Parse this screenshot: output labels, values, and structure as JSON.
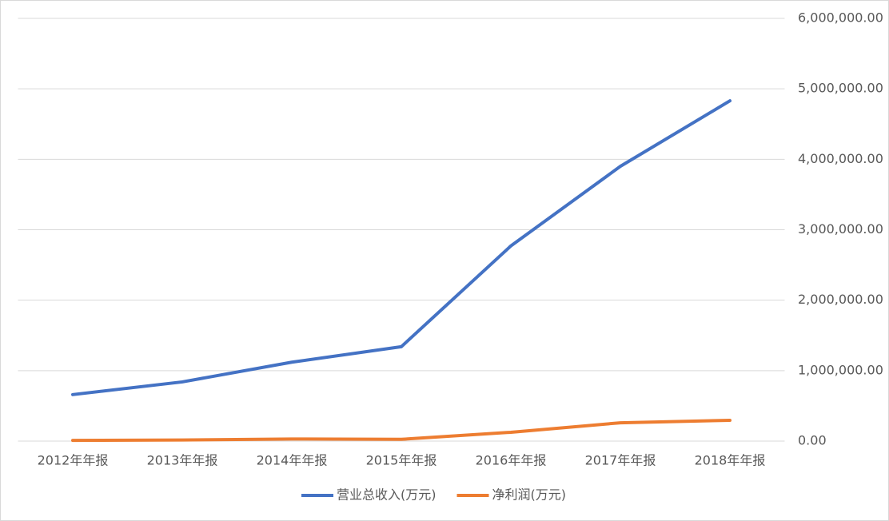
{
  "chart_data": {
    "type": "line",
    "categories": [
      "2012年年报",
      "2013年年报",
      "2014年年报",
      "2015年年报",
      "2016年年报",
      "2017年年报",
      "2018年年报"
    ],
    "series": [
      {
        "name": "营业总收入(万元)",
        "color": "#4472c4",
        "values": [
          660000,
          840000,
          1120000,
          1340000,
          2770000,
          3900000,
          4830000
        ]
      },
      {
        "name": "净利润(万元)",
        "color": "#ed7d31",
        "values": [
          10000,
          15000,
          30000,
          25000,
          125000,
          260000,
          295000
        ]
      }
    ],
    "ylim": [
      0,
      6000000
    ],
    "yticks": [
      {
        "value": 0,
        "label": "0.00"
      },
      {
        "value": 1000000,
        "label": "1,000,000.00"
      },
      {
        "value": 2000000,
        "label": "2,000,000.00"
      },
      {
        "value": 3000000,
        "label": "3,000,000.00"
      },
      {
        "value": 4000000,
        "label": "4,000,000.00"
      },
      {
        "value": 5000000,
        "label": "5,000,000.00"
      },
      {
        "value": 6000000,
        "label": "6,000,000.00"
      }
    ],
    "grid": true,
    "legend": "bottom"
  }
}
